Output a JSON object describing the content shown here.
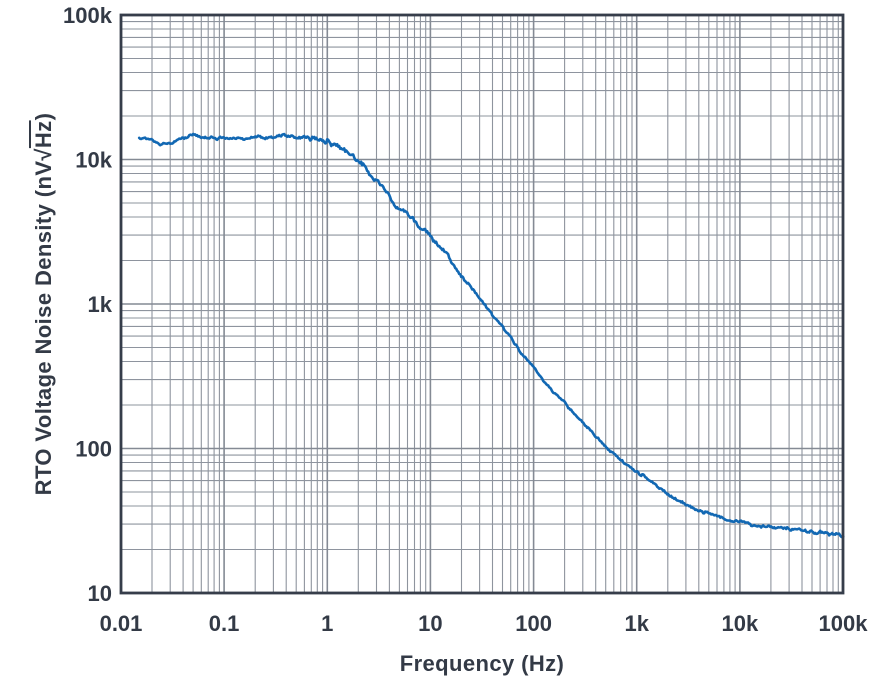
{
  "chart_data": {
    "type": "line",
    "title": "",
    "xlabel": "Frequency (Hz)",
    "ylabel": "RTO Voltage Noise Density (nV√Hz)",
    "ylabel_parts": {
      "prefix": "RTO Voltage Noise Density (nV",
      "radical": "√",
      "under_radical": "Hz",
      "suffix": ")"
    },
    "x_scale": "log",
    "y_scale": "log",
    "xlim": [
      0.01,
      100000
    ],
    "ylim": [
      10,
      100000
    ],
    "x_tick_values": [
      0.01,
      0.1,
      1,
      10,
      100,
      1000,
      10000,
      100000
    ],
    "x_tick_labels": [
      "0.01",
      "0.1",
      "1",
      "10",
      "100",
      "1k",
      "10k",
      "100k"
    ],
    "y_tick_values": [
      10,
      100,
      1000,
      10000,
      100000
    ],
    "y_tick_labels": [
      "10",
      "100",
      "1k",
      "10k",
      "100k"
    ],
    "grid": {
      "major": true,
      "minor": true,
      "position": "both-axes-log"
    },
    "legend": "none",
    "colors": {
      "curve": "#1268b3",
      "text": "#333a46",
      "grid": "#8e949e",
      "grid_major": "#848a94",
      "border": "#363d4a",
      "background": "#ffffff"
    },
    "series": [
      {
        "name": "RTO voltage noise density",
        "color": "#1268b3",
        "points": [
          [
            0.015,
            14000
          ],
          [
            0.02,
            13800
          ],
          [
            0.024,
            12900
          ],
          [
            0.03,
            12800
          ],
          [
            0.04,
            14300
          ],
          [
            0.05,
            14700
          ],
          [
            0.06,
            14100
          ],
          [
            0.08,
            13900
          ],
          [
            0.1,
            14200
          ],
          [
            0.13,
            13900
          ],
          [
            0.18,
            14300
          ],
          [
            0.25,
            14100
          ],
          [
            0.35,
            14400
          ],
          [
            0.5,
            14400
          ],
          [
            0.7,
            14200
          ],
          [
            0.9,
            13800
          ],
          [
            1,
            13400
          ],
          [
            1.3,
            12200
          ],
          [
            1.7,
            10700
          ],
          [
            2,
            9700
          ],
          [
            2.5,
            8300
          ],
          [
            3,
            7000
          ],
          [
            4,
            5600
          ],
          [
            5,
            4700
          ],
          [
            7,
            3700
          ],
          [
            10,
            2900
          ],
          [
            15,
            2100
          ],
          [
            20,
            1600
          ],
          [
            30,
            1100
          ],
          [
            50,
            680
          ],
          [
            70,
            500
          ],
          [
            100,
            360
          ],
          [
            150,
            255
          ],
          [
            200,
            205
          ],
          [
            300,
            150
          ],
          [
            500,
            103
          ],
          [
            700,
            83
          ],
          [
            1000,
            69
          ],
          [
            1500,
            56
          ],
          [
            2000,
            49
          ],
          [
            3000,
            41
          ],
          [
            5000,
            35
          ],
          [
            7000,
            32.5
          ],
          [
            10000,
            31
          ],
          [
            15000,
            29.5
          ],
          [
            20000,
            28.5
          ],
          [
            30000,
            27.5
          ],
          [
            50000,
            26.5
          ],
          [
            70000,
            26
          ],
          [
            100000,
            25.5
          ]
        ]
      }
    ]
  }
}
